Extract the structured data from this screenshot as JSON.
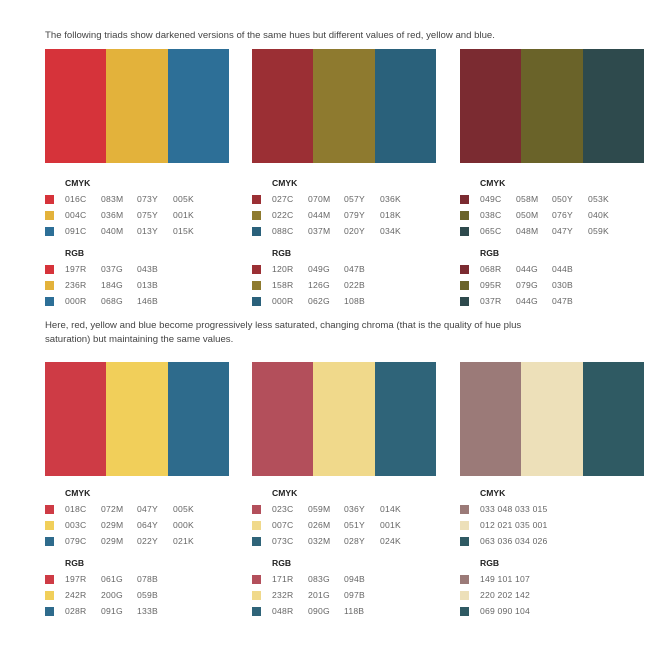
{
  "captions": {
    "top": "The following triads show darkened versions of the same hues but different values of red, yellow and blue.",
    "bottom": "Here, red, yellow and blue become progressively less saturated, changing chroma (that is the quality of hue plus saturation) but maintaining the same values."
  },
  "labels": {
    "cmyk": "CMYK",
    "rgb": "RGB"
  },
  "triads": [
    {
      "colors": [
        "#d6333a",
        "#e3b23b",
        "#2d6f97"
      ],
      "cmyk": [
        [
          "016C",
          "083M",
          "073Y",
          "005K"
        ],
        [
          "004C",
          "036M",
          "075Y",
          "001K"
        ],
        [
          "091C",
          "040M",
          "013Y",
          "015K"
        ]
      ],
      "rgb": [
        [
          "197R",
          "037G",
          "043B"
        ],
        [
          "236R",
          "184G",
          "013B"
        ],
        [
          "000R",
          "068G",
          "146B"
        ]
      ]
    },
    {
      "colors": [
        "#9b2f34",
        "#8e7a2f",
        "#2a617b"
      ],
      "cmyk": [
        [
          "027C",
          "070M",
          "057Y",
          "036K"
        ],
        [
          "022C",
          "044M",
          "079Y",
          "018K"
        ],
        [
          "088C",
          "037M",
          "020Y",
          "034K"
        ]
      ],
      "rgb": [
        [
          "120R",
          "049G",
          "047B"
        ],
        [
          "158R",
          "126G",
          "022B"
        ],
        [
          "000R",
          "062G",
          "108B"
        ]
      ]
    },
    {
      "colors": [
        "#7b2b31",
        "#6a6329",
        "#2e4a4d"
      ],
      "cmyk": [
        [
          "049C",
          "058M",
          "050Y",
          "053K"
        ],
        [
          "038C",
          "050M",
          "076Y",
          "040K"
        ],
        [
          "065C",
          "048M",
          "047Y",
          "059K"
        ]
      ],
      "rgb": [
        [
          "068R",
          "044G",
          "044B"
        ],
        [
          "095R",
          "079G",
          "030B"
        ],
        [
          "037R",
          "044G",
          "047B"
        ]
      ]
    },
    {
      "colors": [
        "#ce3b45",
        "#f1cf5a",
        "#2e6b8c"
      ],
      "cmyk": [
        [
          "018C",
          "072M",
          "047Y",
          "005K"
        ],
        [
          "003C",
          "029M",
          "064Y",
          "000K"
        ],
        [
          "079C",
          "029M",
          "022Y",
          "021K"
        ]
      ],
      "rgb": [
        [
          "197R",
          "061G",
          "078B"
        ],
        [
          "242R",
          "200G",
          "059B"
        ],
        [
          "028R",
          "091G",
          "133B"
        ]
      ]
    },
    {
      "colors": [
        "#b34f5b",
        "#f0d98b",
        "#2f6479"
      ],
      "cmyk": [
        [
          "023C",
          "059M",
          "036Y",
          "014K"
        ],
        [
          "007C",
          "026M",
          "051Y",
          "001K"
        ],
        [
          "073C",
          "032M",
          "028Y",
          "024K"
        ]
      ],
      "rgb": [
        [
          "171R",
          "083G",
          "094B"
        ],
        [
          "232R",
          "201G",
          "097B"
        ],
        [
          "048R",
          "090G",
          "118B"
        ]
      ]
    },
    {
      "colors": [
        "#9b7a78",
        "#ede0b9",
        "#2f5a63"
      ],
      "cmyk": [
        [
          "033 048 033 015"
        ],
        [
          "012 021 035 001"
        ],
        [
          "063 036 034 026"
        ]
      ],
      "rgb": [
        [
          "149 101 107"
        ],
        [
          "220 202 142"
        ],
        [
          "069 090 104"
        ]
      ]
    }
  ]
}
